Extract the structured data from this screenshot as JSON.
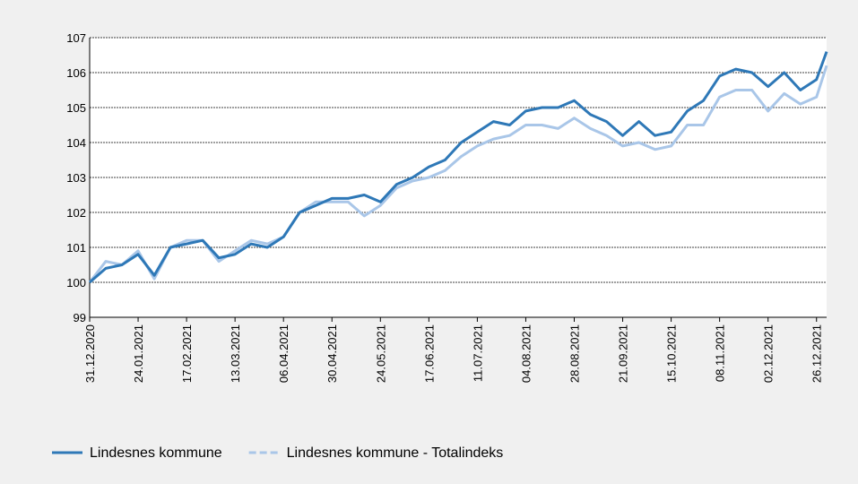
{
  "chart_data": {
    "type": "line",
    "x": [
      "31.12.2020",
      "08.01.2021",
      "16.01.2021",
      "24.01.2021",
      "01.02.2021",
      "09.02.2021",
      "17.02.2021",
      "25.02.2021",
      "05.03.2021",
      "13.03.2021",
      "21.03.2021",
      "29.03.2021",
      "06.04.2021",
      "14.04.2021",
      "22.04.2021",
      "30.04.2021",
      "08.05.2021",
      "16.05.2021",
      "24.05.2021",
      "01.06.2021",
      "09.06.2021",
      "17.06.2021",
      "25.06.2021",
      "03.07.2021",
      "11.07.2021",
      "19.07.2021",
      "27.07.2021",
      "04.08.2021",
      "12.08.2021",
      "20.08.2021",
      "28.08.2021",
      "05.09.2021",
      "13.09.2021",
      "21.09.2021",
      "29.09.2021",
      "07.10.2021",
      "15.10.2021",
      "23.10.2021",
      "31.10.2021",
      "08.11.2021",
      "16.11.2021",
      "24.11.2021",
      "02.12.2021",
      "10.12.2021",
      "18.12.2021",
      "26.12.2021",
      "31.12.2021"
    ],
    "series": [
      {
        "name": "Lindesnes kommune",
        "color": "#2e78b7",
        "values": [
          100.0,
          100.4,
          100.5,
          100.8,
          100.2,
          101.0,
          101.1,
          101.2,
          100.7,
          100.8,
          101.1,
          101.0,
          101.3,
          102.0,
          102.2,
          102.4,
          102.4,
          102.5,
          102.3,
          102.8,
          103.0,
          103.3,
          103.5,
          104.0,
          104.3,
          104.6,
          104.5,
          104.9,
          105.0,
          105.0,
          105.2,
          104.8,
          104.6,
          104.2,
          104.6,
          104.2,
          104.3,
          104.9,
          105.2,
          105.9,
          106.1,
          106.0,
          105.6,
          106.0,
          105.5,
          105.8,
          106.6
        ]
      },
      {
        "name": "Lindesnes kommune - Totalindeks",
        "color": "#a9c6e8",
        "values": [
          100.0,
          100.6,
          100.5,
          100.9,
          100.1,
          101.0,
          101.2,
          101.2,
          100.6,
          100.9,
          101.2,
          101.1,
          101.3,
          102.0,
          102.3,
          102.3,
          102.3,
          101.9,
          102.2,
          102.7,
          102.9,
          103.0,
          103.2,
          103.6,
          103.9,
          104.1,
          104.2,
          104.5,
          104.5,
          104.4,
          104.7,
          104.4,
          104.2,
          103.9,
          104.0,
          103.8,
          103.9,
          104.5,
          104.5,
          105.3,
          105.5,
          105.5,
          104.9,
          105.4,
          105.1,
          105.3,
          106.2
        ]
      }
    ],
    "xticks": [
      "31.12.2020",
      "24.01.2021",
      "17.02.2021",
      "13.03.2021",
      "06.04.2021",
      "30.04.2021",
      "24.05.2021",
      "17.06.2021",
      "11.07.2021",
      "04.08.2021",
      "28.08.2021",
      "21.09.2021",
      "15.10.2021",
      "08.11.2021",
      "02.12.2021",
      "26.12.2021"
    ],
    "ylim": [
      99,
      107
    ],
    "yticks": [
      99,
      100,
      101,
      102,
      103,
      104,
      105,
      106,
      107
    ],
    "grid": true
  }
}
